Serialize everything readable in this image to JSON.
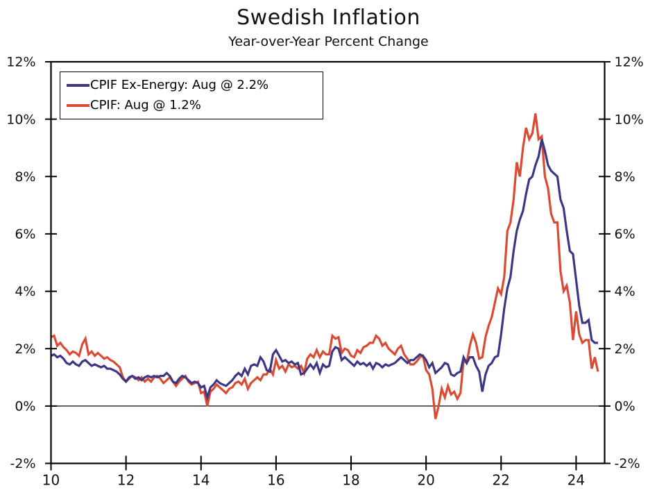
{
  "title": "Swedish Inflation",
  "subtitle": "Year-over-Year Percent Change",
  "legend": {
    "items": [
      {
        "label": "CPIF Ex-Energy: Aug @ 2.2%",
        "color": "#3c3784"
      },
      {
        "label": "CPIF: Aug @ 1.2%",
        "color": "#db4a32"
      }
    ]
  },
  "colors": {
    "cpif_ex_energy": "#3c3784",
    "cpif": "#db4a32",
    "axis": "#000000",
    "text": "#111111"
  },
  "chart_data": {
    "type": "line",
    "title": "Swedish Inflation",
    "subtitle": "Year-over-Year Percent Change",
    "x_unit": "monthly, Jan 2010 - Aug 2024",
    "x_start": 2010,
    "x_step": 0.0833333,
    "xlim": [
      2010,
      2024.76
    ],
    "ylim": [
      -2,
      12
    ],
    "grid": false,
    "zero_line": true,
    "legend_position": "top-left-inside",
    "x_ticks": [
      2010,
      2012,
      2014,
      2016,
      2018,
      2020,
      2022,
      2024
    ],
    "x_tick_labels": [
      "10",
      "12",
      "14",
      "16",
      "18",
      "20",
      "22",
      "24"
    ],
    "y_ticks": [
      12,
      10,
      8,
      6,
      4,
      2,
      0,
      -2
    ],
    "y_tick_labels": [
      "12%",
      "10%",
      "8%",
      "6%",
      "4%",
      "2%",
      "0%",
      "-2%"
    ],
    "y_tick_labels_right": [
      "12%",
      "10%",
      "8%",
      "6%",
      "4%",
      "2%",
      "0%",
      "-2%"
    ],
    "series": [
      {
        "name": "CPIF",
        "legend_label": "CPIF: Aug @ 1.2%",
        "color": "#db4a32",
        "last_point": {
          "month": "Aug 2024",
          "value": 1.2
        },
        "values": [
          2.4,
          2.45,
          2.1,
          2.2,
          2.05,
          1.95,
          1.8,
          1.9,
          1.85,
          1.75,
          2.15,
          2.35,
          1.8,
          1.9,
          1.75,
          1.85,
          1.75,
          1.65,
          1.7,
          1.6,
          1.55,
          1.45,
          1.35,
          1.0,
          0.85,
          0.95,
          1.05,
          1.0,
          0.9,
          1.0,
          0.85,
          0.95,
          0.85,
          1.0,
          1.05,
          0.95,
          0.8,
          0.9,
          1.0,
          0.85,
          0.7,
          0.85,
          0.95,
          1.05,
          0.85,
          0.75,
          0.8,
          0.85,
          0.45,
          0.5,
          0.0,
          0.5,
          0.6,
          0.75,
          0.65,
          0.55,
          0.45,
          0.6,
          0.65,
          0.8,
          0.85,
          0.75,
          0.95,
          0.6,
          0.8,
          0.9,
          1.0,
          0.9,
          1.1,
          1.1,
          1.3,
          1.1,
          1.6,
          1.3,
          1.4,
          1.2,
          1.45,
          1.35,
          1.4,
          1.3,
          1.4,
          1.15,
          1.65,
          1.8,
          1.7,
          1.95,
          1.7,
          1.9,
          1.8,
          1.8,
          2.45,
          2.35,
          2.4,
          1.85,
          2.0,
          1.95,
          1.75,
          1.7,
          1.95,
          1.85,
          2.05,
          2.1,
          2.2,
          2.2,
          2.45,
          2.35,
          2.1,
          2.2,
          2.0,
          1.9,
          1.8,
          2.0,
          2.1,
          1.8,
          1.65,
          1.45,
          1.45,
          1.55,
          1.7,
          1.75,
          1.25,
          1.1,
          0.6,
          -0.45,
          0.0,
          0.6,
          0.3,
          0.7,
          0.4,
          0.5,
          0.25,
          0.45,
          1.6,
          1.5,
          2.1,
          2.5,
          2.2,
          1.65,
          1.7,
          2.4,
          2.8,
          3.1,
          3.6,
          4.1,
          3.9,
          4.5,
          6.1,
          6.4,
          7.2,
          8.5,
          8.0,
          9.0,
          9.7,
          9.3,
          9.5,
          10.2,
          9.3,
          9.4,
          8.0,
          7.6,
          6.7,
          6.4,
          6.4,
          4.7,
          4.0,
          4.2,
          3.6,
          2.3,
          3.3,
          2.5,
          2.2,
          2.3,
          2.3,
          1.3,
          1.7,
          1.2
        ]
      },
      {
        "name": "CPIF Ex-Energy",
        "legend_label": "CPIF Ex-Energy: Aug @ 2.2%",
        "color": "#3c3784",
        "last_point": {
          "month": "Aug 2024",
          "value": 2.2
        },
        "values": [
          1.75,
          1.8,
          1.7,
          1.75,
          1.65,
          1.5,
          1.45,
          1.55,
          1.45,
          1.4,
          1.55,
          1.6,
          1.5,
          1.4,
          1.45,
          1.4,
          1.35,
          1.4,
          1.3,
          1.3,
          1.25,
          1.2,
          1.1,
          0.95,
          0.85,
          1.0,
          1.05,
          0.95,
          1.0,
          0.9,
          1.0,
          1.05,
          1.0,
          1.05,
          1.0,
          1.05,
          1.05,
          1.15,
          1.05,
          0.85,
          0.8,
          0.95,
          1.05,
          1.0,
          0.9,
          0.8,
          0.85,
          0.8,
          0.65,
          0.7,
          0.3,
          0.65,
          0.75,
          0.9,
          0.8,
          0.75,
          0.7,
          0.8,
          0.9,
          1.05,
          1.15,
          1.05,
          1.3,
          1.1,
          1.4,
          1.45,
          1.4,
          1.7,
          1.55,
          1.25,
          1.2,
          1.8,
          1.95,
          1.75,
          1.55,
          1.6,
          1.5,
          1.55,
          1.45,
          1.5,
          1.1,
          1.15,
          1.3,
          1.45,
          1.3,
          1.5,
          1.15,
          1.45,
          1.35,
          1.4,
          1.9,
          2.05,
          2.0,
          1.6,
          1.7,
          1.6,
          1.5,
          1.4,
          1.55,
          1.45,
          1.5,
          1.4,
          1.5,
          1.3,
          1.5,
          1.45,
          1.35,
          1.45,
          1.4,
          1.45,
          1.5,
          1.6,
          1.7,
          1.6,
          1.5,
          1.6,
          1.6,
          1.7,
          1.8,
          1.75,
          1.6,
          1.35,
          1.5,
          1.15,
          1.25,
          1.35,
          1.5,
          1.45,
          1.1,
          1.05,
          1.15,
          1.2,
          1.7,
          1.5,
          1.7,
          1.7,
          1.4,
          1.2,
          0.5,
          1.1,
          1.4,
          1.5,
          1.7,
          1.75,
          2.5,
          3.4,
          4.1,
          4.5,
          5.4,
          6.1,
          6.5,
          6.8,
          7.4,
          7.9,
          8.0,
          8.4,
          8.7,
          9.3,
          8.9,
          8.4,
          8.2,
          8.1,
          8.0,
          7.2,
          6.9,
          6.1,
          5.4,
          5.3,
          4.4,
          3.5,
          2.9,
          2.9,
          3.0,
          2.3,
          2.2,
          2.2
        ]
      }
    ]
  }
}
